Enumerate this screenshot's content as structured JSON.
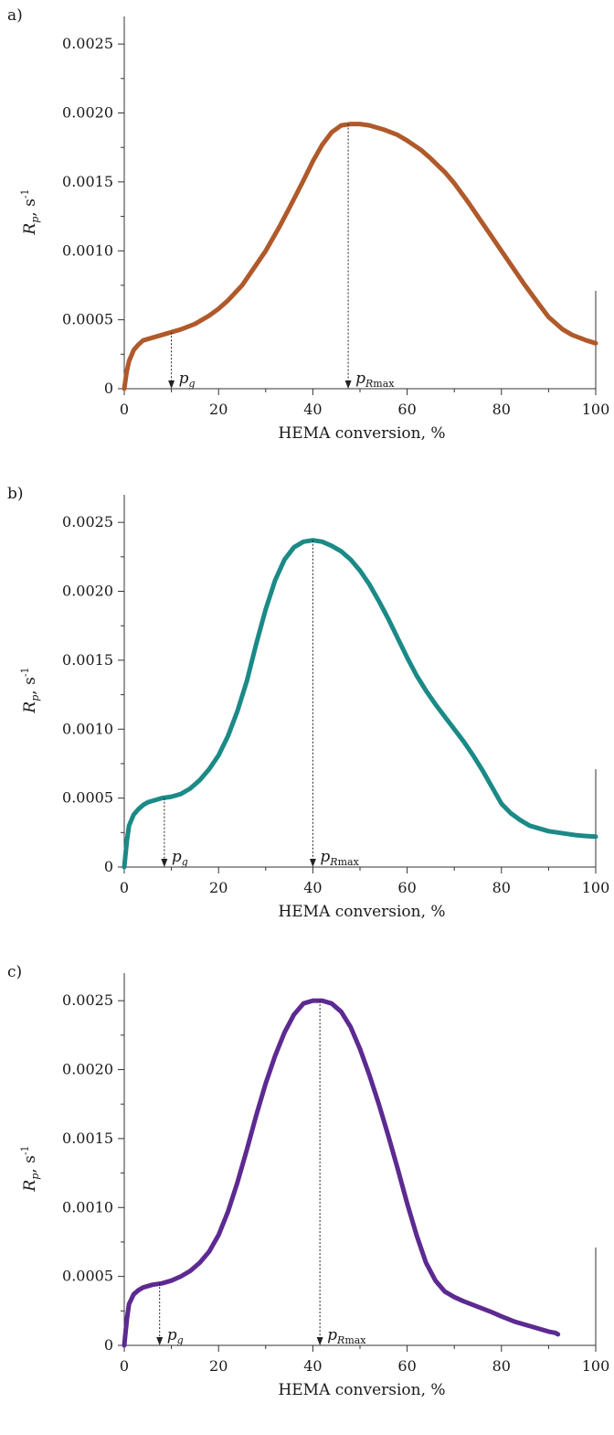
{
  "figure": {
    "charts": [
      {
        "label": "a)",
        "color": "#B0592A",
        "stroke_width": 5,
        "ylabel": {
          "main": "R",
          "sub": "p",
          "rest": ", s",
          "sup": "-1"
        },
        "xlabel": "HEMA conversion, %",
        "annotations": [
          {
            "x": 10,
            "y": 0.00041,
            "main": "p",
            "sub": "g"
          },
          {
            "x": 47.5,
            "y": 0.00192,
            "main": "p",
            "sub": "Rmax"
          }
        ]
      },
      {
        "label": "b)",
        "color": "#1B8A87",
        "stroke_width": 5,
        "ylabel": {
          "main": "R",
          "sub": "p",
          "rest": ", s",
          "sup": "-1"
        },
        "xlabel": "HEMA conversion, %",
        "annotations": [
          {
            "x": 8.5,
            "y": 0.0005,
            "main": "p",
            "sub": "g"
          },
          {
            "x": 40,
            "y": 0.00237,
            "main": "p",
            "sub": "Rmax"
          }
        ]
      },
      {
        "label": "c)",
        "color": "#5C2A91",
        "stroke_width": 5,
        "ylabel": {
          "main": "R",
          "sub": "p",
          "rest": ", s",
          "sup": "-1"
        },
        "xlabel": "HEMA conversion, %",
        "annotations": [
          {
            "x": 7.5,
            "y": 0.00045,
            "main": "p",
            "sub": "g"
          },
          {
            "x": 41.5,
            "y": 0.0025,
            "main": "p",
            "sub": "Rmax"
          }
        ]
      }
    ]
  },
  "chart_data": [
    {
      "type": "line",
      "xlim": [
        0,
        100
      ],
      "ylim": [
        0,
        0.0027
      ],
      "xticks": [
        0,
        20,
        40,
        60,
        80,
        100
      ],
      "xtick_labels": [
        "0",
        "20",
        "40",
        "60",
        "80",
        "100"
      ],
      "yticks": [
        0,
        0.0005,
        0.001,
        0.0015,
        0.002,
        0.0025
      ],
      "ytick_labels": [
        "0",
        "0.0005",
        "0.0010",
        "0.0015",
        "0.0020",
        "0.0025"
      ],
      "grid": false,
      "series": [
        {
          "x": [
            0,
            0.5,
            1,
            2,
            3,
            4,
            6,
            8,
            10,
            12,
            15,
            18,
            20,
            22,
            25,
            28,
            30,
            33,
            35,
            38,
            40,
            42,
            44,
            46,
            48,
            50,
            52,
            55,
            58,
            60,
            63,
            65,
            68,
            70,
            73,
            75,
            78,
            80,
            83,
            85,
            88,
            90,
            93,
            95,
            98,
            100
          ],
          "y": [
            0,
            0.00012,
            0.0002,
            0.00028,
            0.00032,
            0.00035,
            0.00037,
            0.00039,
            0.00041,
            0.00043,
            0.00047,
            0.00053,
            0.00058,
            0.00064,
            0.00075,
            0.0009,
            0.001,
            0.00118,
            0.00131,
            0.00151,
            0.00165,
            0.00177,
            0.00186,
            0.00191,
            0.00192,
            0.00192,
            0.00191,
            0.00188,
            0.00184,
            0.0018,
            0.00173,
            0.00167,
            0.00157,
            0.00149,
            0.00135,
            0.00125,
            0.0011,
            0.001,
            0.00085,
            0.00075,
            0.00061,
            0.00052,
            0.00043,
            0.00039,
            0.00035,
            0.00033
          ]
        }
      ]
    },
    {
      "type": "line",
      "xlim": [
        0,
        100
      ],
      "ylim": [
        0,
        0.0027
      ],
      "xticks": [
        0,
        20,
        40,
        60,
        80,
        100
      ],
      "xtick_labels": [
        "0",
        "20",
        "40",
        "60",
        "80",
        "100"
      ],
      "yticks": [
        0,
        0.0005,
        0.001,
        0.0015,
        0.002,
        0.0025
      ],
      "ytick_labels": [
        "0",
        "0.0005",
        "0.0010",
        "0.0015",
        "0.0020",
        "0.0025"
      ],
      "grid": false,
      "series": [
        {
          "x": [
            0,
            0.3,
            0.6,
            1,
            2,
            3,
            4,
            5,
            6,
            8,
            10,
            12,
            14,
            16,
            18,
            20,
            22,
            24,
            26,
            28,
            30,
            32,
            34,
            36,
            38,
            40,
            42,
            44,
            46,
            48,
            50,
            52,
            54,
            56,
            58,
            60,
            62,
            64,
            66,
            68,
            70,
            72,
            74,
            76,
            78,
            80,
            82,
            84,
            86,
            88,
            90,
            92,
            94,
            96,
            98,
            100
          ],
          "y": [
            0,
            0.0001,
            0.0002,
            0.0003,
            0.00038,
            0.00042,
            0.00045,
            0.00047,
            0.00048,
            0.0005,
            0.00051,
            0.00053,
            0.00057,
            0.00063,
            0.00071,
            0.00081,
            0.00095,
            0.00113,
            0.00135,
            0.00162,
            0.00187,
            0.00208,
            0.00223,
            0.00232,
            0.00236,
            0.00237,
            0.00236,
            0.00233,
            0.00229,
            0.00223,
            0.00215,
            0.00205,
            0.00193,
            0.0018,
            0.00166,
            0.00152,
            0.00139,
            0.00128,
            0.00118,
            0.00109,
            0.001,
            0.00091,
            0.00081,
            0.0007,
            0.00058,
            0.00046,
            0.00039,
            0.00034,
            0.0003,
            0.00028,
            0.00026,
            0.00025,
            0.00024,
            0.00023,
            0.000225,
            0.00022
          ]
        }
      ]
    },
    {
      "type": "line",
      "xlim": [
        0,
        100
      ],
      "ylim": [
        0,
        0.0027
      ],
      "xticks": [
        0,
        20,
        40,
        60,
        80,
        100
      ],
      "xtick_labels": [
        "0",
        "20",
        "40",
        "60",
        "80",
        "100"
      ],
      "yticks": [
        0,
        0.0005,
        0.001,
        0.0015,
        0.002,
        0.0025
      ],
      "ytick_labels": [
        "0",
        "0.0005",
        "0.0010",
        "0.0015",
        "0.0020",
        "0.0025"
      ],
      "grid": false,
      "series": [
        {
          "x": [
            0,
            0.3,
            0.6,
            1,
            2,
            3,
            4,
            6,
            8,
            10,
            12,
            14,
            16,
            18,
            20,
            22,
            24,
            26,
            28,
            30,
            32,
            34,
            36,
            38,
            40,
            42,
            44,
            46,
            48,
            50,
            52,
            54,
            56,
            58,
            60,
            62,
            64,
            66,
            68,
            70,
            72,
            75,
            78,
            80,
            83,
            85,
            88,
            90,
            91.5,
            92
          ],
          "y": [
            0,
            0.0001,
            0.0002,
            0.0003,
            0.00037,
            0.0004,
            0.00042,
            0.00044,
            0.00045,
            0.00047,
            0.0005,
            0.00054,
            0.0006,
            0.00068,
            0.0008,
            0.00097,
            0.00118,
            0.00142,
            0.00167,
            0.0019,
            0.0021,
            0.00227,
            0.0024,
            0.00248,
            0.0025,
            0.0025,
            0.00248,
            0.00242,
            0.00231,
            0.00215,
            0.00196,
            0.00175,
            0.00152,
            0.00128,
            0.00103,
            0.0008,
            0.0006,
            0.00047,
            0.00039,
            0.00035,
            0.00032,
            0.00028,
            0.00024,
            0.00021,
            0.00017,
            0.00015,
            0.00012,
            0.0001,
            9e-05,
            8e-05
          ]
        }
      ]
    }
  ]
}
